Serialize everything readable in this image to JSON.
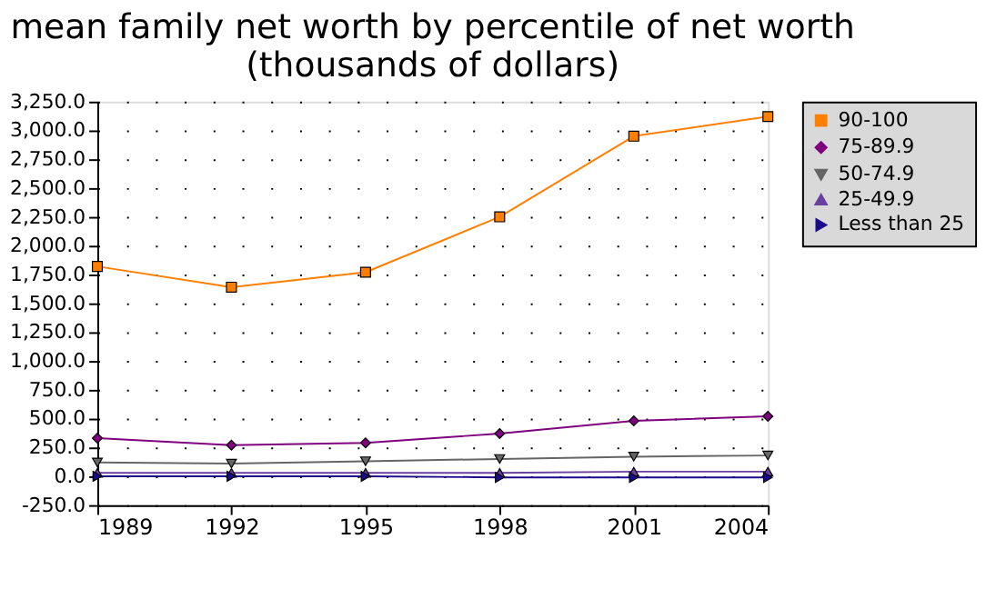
{
  "chart_data": {
    "type": "line",
    "title": [
      "mean family net worth by percentile of net worth",
      "(thousands of dollars)"
    ],
    "x": [
      1989,
      1992,
      1995,
      1998,
      2001,
      2004
    ],
    "xlim": [
      1989,
      2004
    ],
    "xticks": [
      1989,
      1992,
      1995,
      1998,
      2001,
      2004
    ],
    "ylim": [
      -250,
      3250
    ],
    "yticks": [
      {
        "value": -250,
        "label": "-250.0"
      },
      {
        "value": 0,
        "label": "0.0"
      },
      {
        "value": 250,
        "label": "250.0"
      },
      {
        "value": 500,
        "label": "500.0"
      },
      {
        "value": 750,
        "label": "750.0"
      },
      {
        "value": 1000,
        "label": "1,000.0"
      },
      {
        "value": 1250,
        "label": "1,250.0"
      },
      {
        "value": 1500,
        "label": "1,500.0"
      },
      {
        "value": 1750,
        "label": "1,750.0"
      },
      {
        "value": 2000,
        "label": "2,000.0"
      },
      {
        "value": 2250,
        "label": "2,250.0"
      },
      {
        "value": 2500,
        "label": "2,500.0"
      },
      {
        "value": 2750,
        "label": "2,750.0"
      },
      {
        "value": 3000,
        "label": "3,000.0"
      },
      {
        "value": 3250,
        "label": "3,250.0"
      }
    ],
    "grid": "y",
    "legend": "right",
    "series": [
      {
        "name": "90-100",
        "color": "#ff7f00",
        "marker": "square",
        "values": [
          1820,
          1640,
          1770,
          2250,
          2950,
          3120
        ]
      },
      {
        "name": "75-89.9",
        "color": "#7f007f",
        "marker": "diamond",
        "values": [
          330,
          270,
          290,
          370,
          480,
          520
        ]
      },
      {
        "name": "50-74.9",
        "color": "#666666",
        "marker": "triangle-down",
        "values": [
          120,
          110,
          130,
          150,
          170,
          180
        ]
      },
      {
        "name": "25-49.9",
        "color": "#6b3fa0",
        "marker": "triangle-up",
        "values": [
          30,
          30,
          30,
          30,
          40,
          40
        ]
      },
      {
        "name": "Less than 25",
        "color": "#1a0a8c",
        "marker": "triangle-right",
        "values": [
          0,
          0,
          0,
          -10,
          -10,
          -10
        ]
      }
    ]
  }
}
